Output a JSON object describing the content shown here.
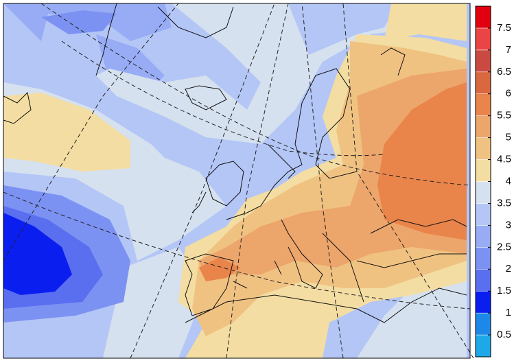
{
  "colorbar": {
    "levels": [
      0.5,
      1,
      1.5,
      2,
      2.5,
      3,
      3.5,
      4,
      4.5,
      5,
      5.5,
      6,
      6.5,
      7,
      7.5
    ],
    "colors": [
      "#1ea8e8",
      "#1e88e8",
      "#0a1ef0",
      "#5a6ef0",
      "#7c92f2",
      "#97acf5",
      "#b4c6f6",
      "#d6e1ef",
      "#f3dda2",
      "#f0c282",
      "#eca56b",
      "#e9844a",
      "#d9683f",
      "#c94a40",
      "#ea4444",
      "#e0000e"
    ]
  }
}
